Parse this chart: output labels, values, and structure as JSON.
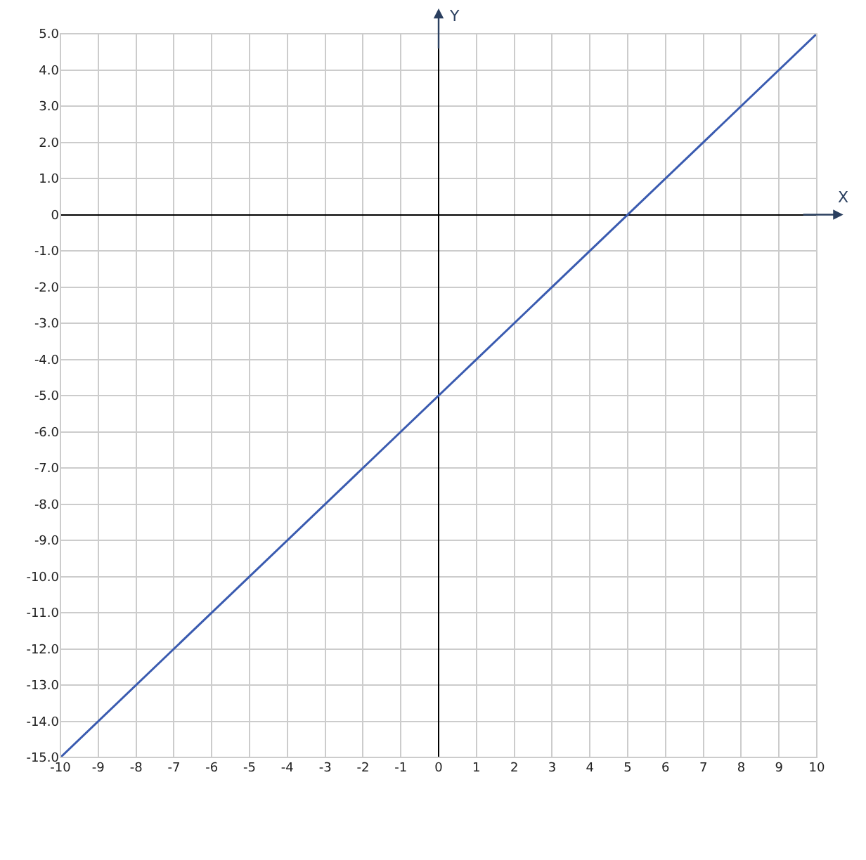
{
  "chart_data": {
    "type": "line",
    "xlabel": "X",
    "ylabel": "Y",
    "x": [
      -10,
      10
    ],
    "series": [
      {
        "color": "#3a5bb0",
        "values": [
          -15,
          5
        ]
      }
    ],
    "xlim": [
      -10,
      10
    ],
    "xticks": [
      -10,
      -9,
      -8,
      -7,
      -6,
      -5,
      -4,
      -3,
      -2,
      -1,
      0,
      1,
      2,
      3,
      4,
      5,
      6,
      7,
      8,
      9,
      10
    ],
    "ylim": [
      -15,
      5
    ],
    "yticks": [
      {
        "value": 5,
        "label": "5.0"
      },
      {
        "value": 4,
        "label": "4.0"
      },
      {
        "value": 3,
        "label": "3.0"
      },
      {
        "value": 2,
        "label": "2.0"
      },
      {
        "value": 1,
        "label": "1.0"
      },
      0,
      {
        "value": -1,
        "label": "-1.0"
      },
      {
        "value": -2,
        "label": "-2.0"
      },
      {
        "value": -3,
        "label": "-3.0"
      },
      {
        "value": -4,
        "label": "-4.0"
      },
      {
        "value": -5,
        "label": "-5.0"
      },
      {
        "value": -6,
        "label": "-6.0"
      },
      {
        "value": -7,
        "label": "-7.0"
      },
      {
        "value": -8,
        "label": "-8.0"
      },
      {
        "value": -9,
        "label": "-9.0"
      },
      {
        "value": -10,
        "label": "-10.0"
      },
      {
        "value": -11,
        "label": "-11.0"
      },
      {
        "value": -12,
        "label": "-12.0"
      },
      {
        "value": -13,
        "label": "-13.0"
      },
      {
        "value": -14,
        "label": "-14.0"
      },
      {
        "value": -15,
        "label": "-15.0"
      }
    ],
    "grid": true,
    "marker": "none",
    "line_style": "solid",
    "legend": false
  }
}
